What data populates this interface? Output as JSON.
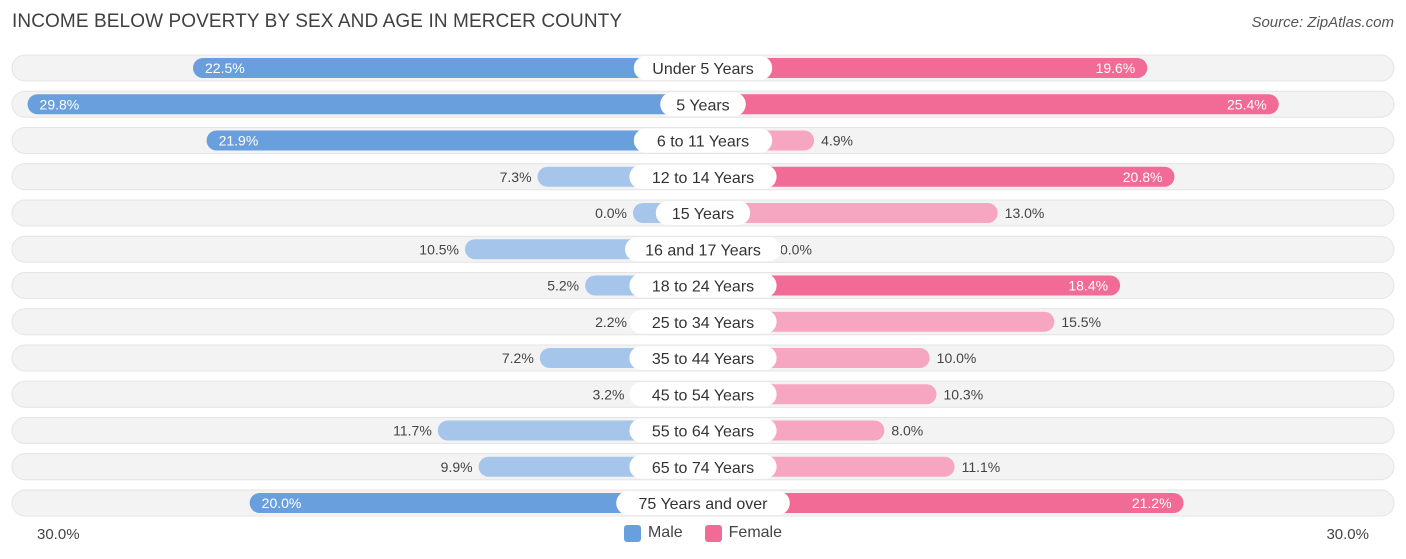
{
  "title": "INCOME BELOW POVERTY BY SEX AND AGE IN MERCER COUNTY",
  "source": "Source: ZipAtlas.com",
  "axis": {
    "left_label": "30.0%",
    "right_label": "30.0%"
  },
  "legend": {
    "male": "Male",
    "female": "Female"
  },
  "colors": {
    "male_strong": "#6a9fde",
    "male_light": "#a5c6ea",
    "female_strong": "#f26b97",
    "female_light": "#f7a6c1",
    "row_bg": "#f0f0f0"
  },
  "chart_data": {
    "type": "bar",
    "title": "INCOME BELOW POVERTY BY SEX AND AGE IN MERCER COUNTY",
    "categories": [
      "Under 5 Years",
      "5 Years",
      "6 to 11 Years",
      "12 to 14 Years",
      "15 Years",
      "16 and 17 Years",
      "18 to 24 Years",
      "25 to 34 Years",
      "35 to 44 Years",
      "45 to 54 Years",
      "55 to 64 Years",
      "65 to 74 Years",
      "75 Years and over"
    ],
    "series": [
      {
        "name": "Male",
        "values": [
          22.5,
          29.8,
          21.9,
          7.3,
          0.0,
          10.5,
          5.2,
          2.2,
          7.2,
          3.2,
          11.7,
          9.9,
          20.0
        ],
        "labels": [
          "22.5%",
          "29.8%",
          "21.9%",
          "7.3%",
          "0.0%",
          "10.5%",
          "5.2%",
          "2.2%",
          "7.2%",
          "3.2%",
          "11.7%",
          "9.9%",
          "20.0%"
        ]
      },
      {
        "name": "Female",
        "values": [
          19.6,
          25.4,
          4.9,
          20.8,
          13.0,
          0.0,
          18.4,
          15.5,
          10.0,
          10.3,
          8.0,
          11.1,
          21.2
        ],
        "labels": [
          "19.6%",
          "25.4%",
          "4.9%",
          "20.8%",
          "13.0%",
          "0.0%",
          "18.4%",
          "15.5%",
          "10.0%",
          "10.3%",
          "8.0%",
          "11.1%",
          "21.2%"
        ]
      }
    ],
    "xlim": [
      -30,
      30
    ],
    "legend_position": "bottom-center"
  }
}
